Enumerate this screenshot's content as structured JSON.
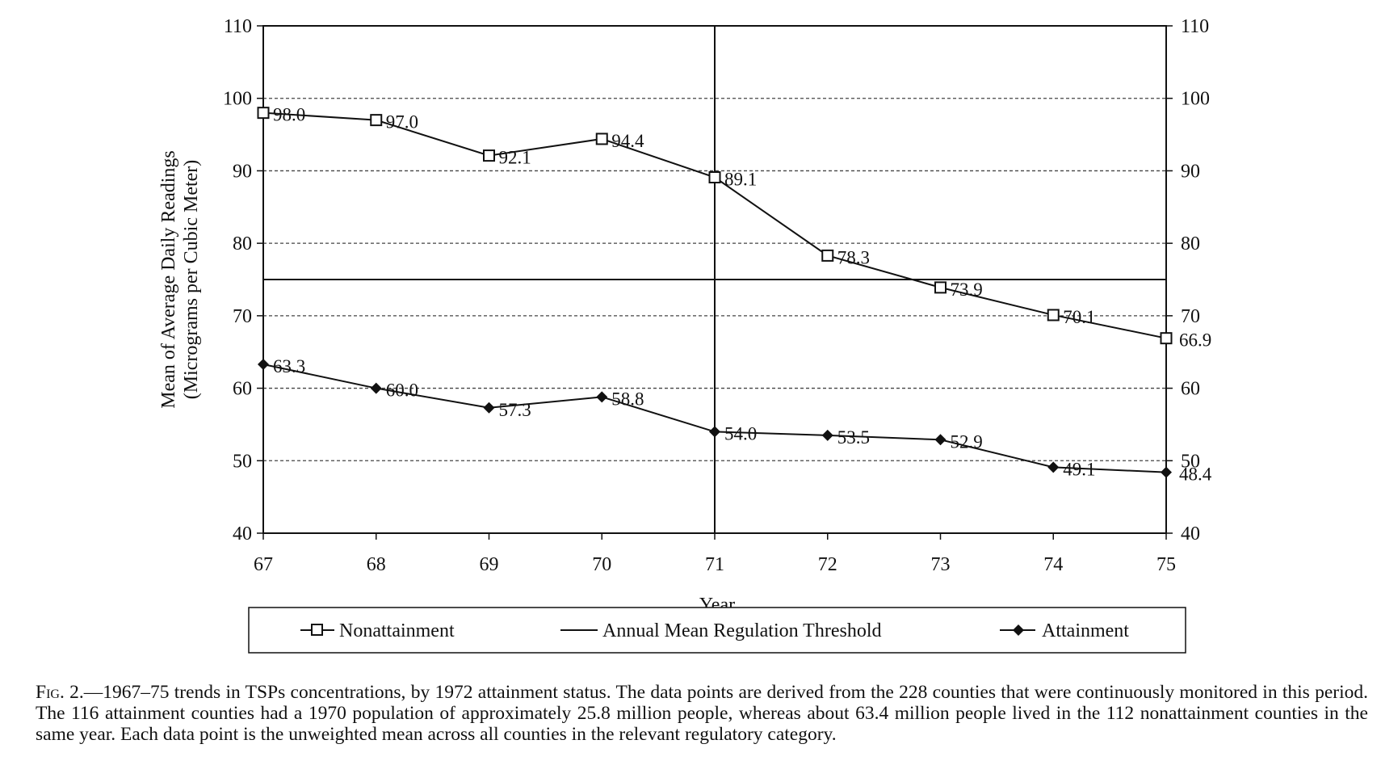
{
  "chart_data": {
    "type": "line",
    "categories": [
      "67",
      "68",
      "69",
      "70",
      "71",
      "72",
      "73",
      "74",
      "75"
    ],
    "series": [
      {
        "name": "Nonattainment",
        "values": [
          98.0,
          97.0,
          92.1,
          94.4,
          89.1,
          78.3,
          73.9,
          70.1,
          66.9
        ],
        "labels": [
          "98.0",
          "97.0",
          "92.1",
          "94.4",
          "89.1",
          "78.3",
          "73.9",
          "70.1",
          "66.9"
        ],
        "marker": "open-square"
      },
      {
        "name": "Attainment",
        "values": [
          63.3,
          60.0,
          57.3,
          58.8,
          54.0,
          53.5,
          52.9,
          49.1,
          48.4
        ],
        "labels": [
          "63.3",
          "60.0",
          "57.3",
          "58.8",
          "54.0",
          "53.5",
          "52.9",
          "49.1",
          "48.4"
        ],
        "marker": "filled-diamond"
      }
    ],
    "threshold": {
      "name": "Annual Mean Regulation Threshold",
      "value": 75
    },
    "vertical_marker_x": "71",
    "xlabel": "Year",
    "ylabel_line1": "Mean of Average Daily Readings",
    "ylabel_line2": "(Micrograms per Cubic Meter)",
    "ylim": [
      40,
      110
    ],
    "yticks": [
      "40",
      "50",
      "60",
      "70",
      "80",
      "90",
      "100",
      "110"
    ],
    "grid": "dashed-horizontal",
    "legend_position": "bottom"
  },
  "caption": {
    "fig_label": "Fig. 2.",
    "text": "—1967–75 trends in TSPs concentrations, by 1972 attainment status. The data points are derived from the 228 counties that were continuously monitored in this period. The 116 attainment counties had a 1970 population of approximately 25.8 million people, whereas about 63.4 million people lived in the 112 nonattainment counties in the same year. Each data point is the unweighted mean across all counties in the relevant regulatory category."
  }
}
